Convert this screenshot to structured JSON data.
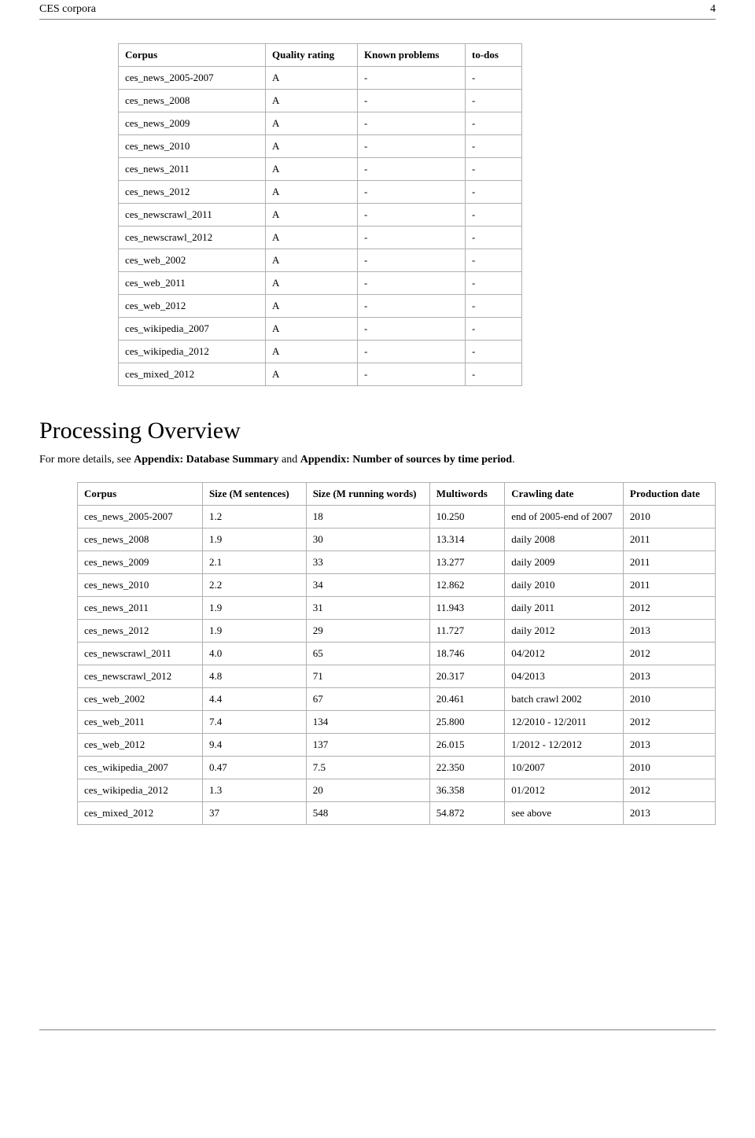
{
  "header": {
    "title": "CES corpora",
    "page_number": "4"
  },
  "table1": {
    "columns": [
      "Corpus",
      "Quality rating",
      "Known problems",
      "to-dos"
    ],
    "rows": [
      [
        "ces_news_2005-2007",
        "A",
        "-",
        "-"
      ],
      [
        "ces_news_2008",
        "A",
        "-",
        "-"
      ],
      [
        "ces_news_2009",
        "A",
        "-",
        "-"
      ],
      [
        "ces_news_2010",
        "A",
        "-",
        "-"
      ],
      [
        "ces_news_2011",
        "A",
        "-",
        "-"
      ],
      [
        "ces_news_2012",
        "A",
        "-",
        "-"
      ],
      [
        "ces_newscrawl_2011",
        "A",
        "-",
        "-"
      ],
      [
        "ces_newscrawl_2012",
        "A",
        "-",
        "-"
      ],
      [
        "ces_web_2002",
        "A",
        "-",
        "-"
      ],
      [
        "ces_web_2011",
        "A",
        "-",
        "-"
      ],
      [
        "ces_web_2012",
        "A",
        "-",
        "-"
      ],
      [
        "ces_wikipedia_2007",
        "A",
        "-",
        "-"
      ],
      [
        "ces_wikipedia_2012",
        "A",
        "-",
        "-"
      ],
      [
        "ces_mixed_2012",
        "A",
        "-",
        "-"
      ]
    ]
  },
  "section": {
    "heading": "Processing Overview",
    "intro_prefix": "For more details, see ",
    "intro_bold1": "Appendix: Database Summary",
    "intro_mid": " and ",
    "intro_bold2": "Appendix: Number of sources by time period",
    "intro_suffix": "."
  },
  "table2": {
    "columns": [
      "Corpus",
      "Size (M sentences)",
      "Size (M running words)",
      "Multiwords",
      "Crawling date",
      "Production date"
    ],
    "rows": [
      [
        "ces_news_2005-2007",
        "1.2",
        "18",
        "10.250",
        "end of 2005-end of 2007",
        "2010"
      ],
      [
        "ces_news_2008",
        "1.9",
        "30",
        "13.314",
        "daily 2008",
        "2011"
      ],
      [
        "ces_news_2009",
        "2.1",
        "33",
        "13.277",
        "daily 2009",
        "2011"
      ],
      [
        "ces_news_2010",
        "2.2",
        "34",
        "12.862",
        "daily 2010",
        "2011"
      ],
      [
        "ces_news_2011",
        "1.9",
        "31",
        "11.943",
        "daily 2011",
        "2012"
      ],
      [
        "ces_news_2012",
        "1.9",
        "29",
        "11.727",
        "daily 2012",
        "2013"
      ],
      [
        "ces_newscrawl_2011",
        "4.0",
        "65",
        "18.746",
        "04/2012",
        "2012"
      ],
      [
        "ces_newscrawl_2012",
        "4.8",
        "71",
        "20.317",
        "04/2013",
        "2013"
      ],
      [
        "ces_web_2002",
        "4.4",
        "67",
        "20.461",
        "batch crawl 2002",
        "2010"
      ],
      [
        "ces_web_2011",
        "7.4",
        "134",
        "25.800",
        "12/2010 - 12/2011",
        "2012"
      ],
      [
        "ces_web_2012",
        "9.4",
        "137",
        "26.015",
        "1/2012 - 12/2012",
        "2013"
      ],
      [
        "ces_wikipedia_2007",
        "0.47",
        "7.5",
        "22.350",
        "10/2007",
        "2010"
      ],
      [
        "ces_wikipedia_2012",
        "1.3",
        "20",
        "36.358",
        "01/2012",
        "2012"
      ],
      [
        "ces_mixed_2012",
        "37",
        "548",
        "54.872",
        "see above",
        "2013"
      ]
    ]
  }
}
